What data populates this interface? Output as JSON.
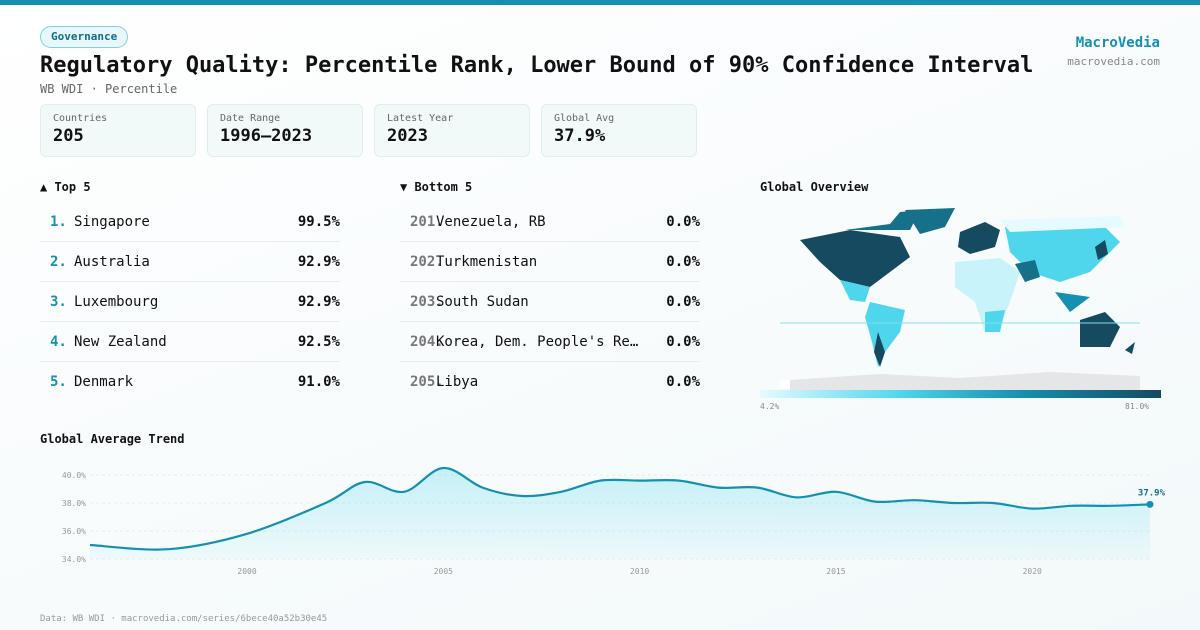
{
  "header": {
    "category": "Governance",
    "title": "Regulatory Quality: Percentile Rank, Lower Bound of 90% Confidence Interval",
    "subtitle": "WB WDI · Percentile"
  },
  "brand": {
    "name": "MacroVedia",
    "url": "macrovedia.com"
  },
  "stats": [
    {
      "label": "Countries",
      "value": "205"
    },
    {
      "label": "Date Range",
      "value": "1996–2023"
    },
    {
      "label": "Latest Year",
      "value": "2023"
    },
    {
      "label": "Global Avg",
      "value": "37.9%"
    }
  ],
  "top5": {
    "title": "▲ Top 5",
    "items": [
      {
        "rank": "1.",
        "name": "Singapore",
        "value": "99.5%"
      },
      {
        "rank": "2.",
        "name": "Australia",
        "value": "92.9%"
      },
      {
        "rank": "3.",
        "name": "Luxembourg",
        "value": "92.9%"
      },
      {
        "rank": "4.",
        "name": "New Zealand",
        "value": "92.5%"
      },
      {
        "rank": "5.",
        "name": "Denmark",
        "value": "91.0%"
      }
    ]
  },
  "bottom5": {
    "title": "▼ Bottom 5",
    "items": [
      {
        "rank": "201.",
        "name": "Venezuela, RB",
        "value": "0.0%"
      },
      {
        "rank": "202.",
        "name": "Turkmenistan",
        "value": "0.0%"
      },
      {
        "rank": "203.",
        "name": "South Sudan",
        "value": "0.0%"
      },
      {
        "rank": "204.",
        "name": "Korea, Dem. People's Rep.",
        "value": "0.0%"
      },
      {
        "rank": "205.",
        "name": "Libya",
        "value": "0.0%"
      }
    ]
  },
  "map": {
    "title": "Global Overview",
    "legend_min": "4.2%",
    "legend_max": "81.0%",
    "colors": [
      "#e6fbff",
      "#4fd6ec",
      "#1590b0",
      "#154a60"
    ]
  },
  "chart_data": {
    "type": "area",
    "title": "Global Average Trend",
    "x": [
      1996,
      1998,
      2000,
      2002,
      2003,
      2004,
      2005,
      2006,
      2007,
      2008,
      2009,
      2010,
      2011,
      2012,
      2013,
      2014,
      2015,
      2016,
      2017,
      2018,
      2019,
      2020,
      2021,
      2022,
      2023
    ],
    "values": [
      35.0,
      34.7,
      35.8,
      38.0,
      39.5,
      38.8,
      40.5,
      39.1,
      38.5,
      38.8,
      39.6,
      39.6,
      39.6,
      39.1,
      39.1,
      38.4,
      38.8,
      38.1,
      38.2,
      38.0,
      38.0,
      37.6,
      37.8,
      37.8,
      37.9
    ],
    "ylim": [
      34,
      40.5
    ],
    "xlim": [
      1996,
      2023
    ],
    "yticks": [
      "34.0%",
      "36.0%",
      "38.0%",
      "40.0%"
    ],
    "ytick_values": [
      34,
      36,
      38,
      40
    ],
    "xticks": [
      "2000",
      "2005",
      "2010",
      "2015",
      "2020"
    ],
    "xtick_values": [
      2000,
      2005,
      2010,
      2015,
      2020
    ],
    "last_label": "37.9%",
    "color": "#1590b0"
  },
  "footer": "Data: WB WDI · macrovedia.com/series/6bece40a52b30e45"
}
